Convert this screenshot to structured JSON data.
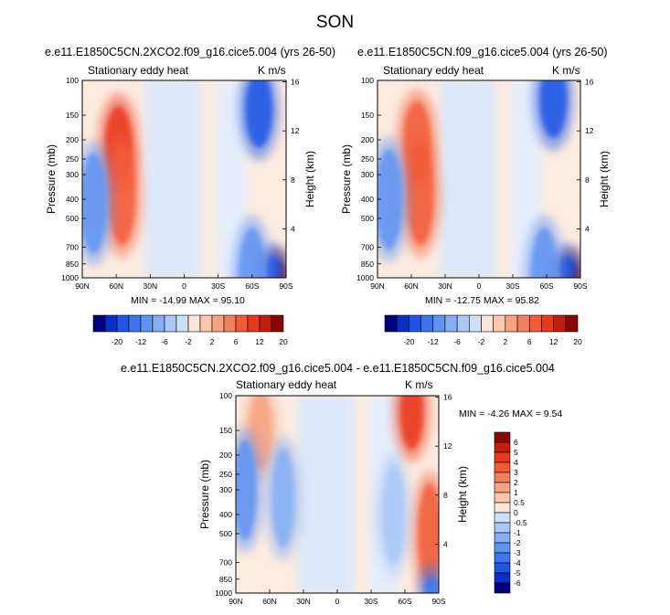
{
  "figure_title": "SON",
  "colors": {
    "palette": [
      "#00007f",
      "#0a2fc8",
      "#1f55e6",
      "#3d74ef",
      "#5f93f2",
      "#84aff4",
      "#a9c8f6",
      "#cde0f8",
      "#fde5d6",
      "#fbc8ae",
      "#f8a280",
      "#f47f5e",
      "#f25b38",
      "#e8381d",
      "#c21e0e",
      "#860805"
    ],
    "palette3": [
      "#00007f",
      "#0a2fc8",
      "#1f55e6",
      "#3d74ef",
      "#5f93f2",
      "#84aff4",
      "#a9c8f6",
      "#cde0f8",
      "#fde5d6",
      "#fbc8ae",
      "#f8a280",
      "#f47f5e",
      "#f25b38",
      "#e8381d",
      "#c21e0e",
      "#860805"
    ]
  },
  "panels": [
    {
      "title": "e.e11.E1850C5CN.2XCO2.f09_g16.cice5.004 (yrs 26-50)",
      "left_label": "Stationary eddy heat",
      "right_label": "K m/s",
      "min_max": "MIN = -14.99   MAX =  95.10"
    },
    {
      "title": "e.e11.E1850C5CN.f09_g16.cice5.004 (yrs 26-50)",
      "left_label": "Stationary eddy heat",
      "right_label": "K m/s",
      "min_max": "MIN = -12.75   MAX =  95.82"
    },
    {
      "title": "e.e11.E1850C5CN.2XCO2.f09_g16.cice5.004 - e.e11.E1850C5CN.f09_g16.cice5.004",
      "left_label": "Stationary eddy heat",
      "right_label": "K m/s",
      "min_max": "MIN =  -4.26   MAX =   9.54"
    }
  ],
  "chart_data": [
    {
      "type": "heatmap",
      "title": "e.e11.E1850C5CN.2XCO2.f09_g16.cice5.004 (yrs 26-50)",
      "variable": "Stationary eddy heat",
      "units": "K m/s",
      "ylabel": "Pressure (mb)",
      "ylabel_right": "Height (km)",
      "x_ticks": [
        "90N",
        "60N",
        "30N",
        "0",
        "30S",
        "60S",
        "90S"
      ],
      "y_ticks": [
        "100",
        "150",
        "200",
        "250",
        "300",
        "400",
        "500",
        "700",
        "850",
        "1000"
      ],
      "y_right_ticks": [
        "16",
        "12",
        "8",
        "4"
      ],
      "xlim": [
        90,
        -90
      ],
      "ylim": [
        1000,
        100
      ],
      "color_levels": [
        "-20",
        "-12",
        "-6",
        "-2",
        "2",
        "6",
        "12",
        "20"
      ],
      "min": -14.99,
      "max": 95.1,
      "features": [
        {
          "lat": 58,
          "p": 210,
          "value": 14
        },
        {
          "lat": 55,
          "p": 380,
          "value": 10
        },
        {
          "lat": 80,
          "p": 420,
          "value": -7
        },
        {
          "lat": -66,
          "p": 140,
          "value": -12
        },
        {
          "lat": -82,
          "p": 950,
          "value": 40
        },
        {
          "lat": -78,
          "p": 900,
          "value": -14
        },
        {
          "lat": -60,
          "p": 1000,
          "value": -6
        }
      ]
    },
    {
      "type": "heatmap",
      "title": "e.e11.E1850C5CN.f09_g16.cice5.004 (yrs 26-50)",
      "variable": "Stationary eddy heat",
      "units": "K m/s",
      "ylabel": "Pressure (mb)",
      "ylabel_right": "Height (km)",
      "x_ticks": [
        "90N",
        "60N",
        "30N",
        "0",
        "30S",
        "60S",
        "90S"
      ],
      "y_ticks": [
        "100",
        "150",
        "200",
        "250",
        "300",
        "400",
        "500",
        "700",
        "850",
        "1000"
      ],
      "y_right_ticks": [
        "16",
        "12",
        "8",
        "4"
      ],
      "xlim": [
        90,
        -90
      ],
      "ylim": [
        1000,
        100
      ],
      "color_levels": [
        "-20",
        "-12",
        "-6",
        "-2",
        "2",
        "6",
        "12",
        "20"
      ],
      "min": -12.75,
      "max": 95.82,
      "features": [
        {
          "lat": 52,
          "p": 380,
          "value": 12
        },
        {
          "lat": 55,
          "p": 200,
          "value": 10
        },
        {
          "lat": 80,
          "p": 400,
          "value": -6
        },
        {
          "lat": -66,
          "p": 125,
          "value": -12
        },
        {
          "lat": -82,
          "p": 950,
          "value": 40
        },
        {
          "lat": -78,
          "p": 900,
          "value": -12
        },
        {
          "lat": -58,
          "p": 1000,
          "value": -6
        }
      ]
    },
    {
      "type": "heatmap",
      "title": "e.e11.E1850C5CN.2XCO2.f09_g16.cice5.004 - e.e11.E1850C5CN.f09_g16.cice5.004",
      "variable": "Stationary eddy heat",
      "units": "K m/s",
      "ylabel": "Pressure (mb)",
      "ylabel_right": "Height (km)",
      "x_ticks": [
        "90N",
        "60N",
        "30N",
        "0",
        "30S",
        "60S",
        "90S"
      ],
      "y_ticks": [
        "100",
        "150",
        "200",
        "250",
        "300",
        "400",
        "500",
        "700",
        "850",
        "1000"
      ],
      "y_right_ticks": [
        "16",
        "12",
        "8",
        "4"
      ],
      "xlim": [
        90,
        -90
      ],
      "ylim": [
        1000,
        100
      ],
      "color_levels": [
        "6",
        "5",
        "4",
        "3",
        "2",
        "1",
        "0.5",
        "0",
        "-0.5",
        "-1",
        "-2",
        "-3",
        "-4",
        "-5",
        "-6"
      ],
      "min": -4.26,
      "max": 9.54,
      "features": [
        {
          "lat": 68,
          "p": 150,
          "value": 2
        },
        {
          "lat": 82,
          "p": 300,
          "value": -2
        },
        {
          "lat": 48,
          "p": 330,
          "value": -1.5
        },
        {
          "lat": -66,
          "p": 120,
          "value": 5
        },
        {
          "lat": -82,
          "p": 500,
          "value": 4
        },
        {
          "lat": -84,
          "p": 950,
          "value": -3
        },
        {
          "lat": -50,
          "p": 400,
          "value": -0.7
        }
      ]
    }
  ]
}
